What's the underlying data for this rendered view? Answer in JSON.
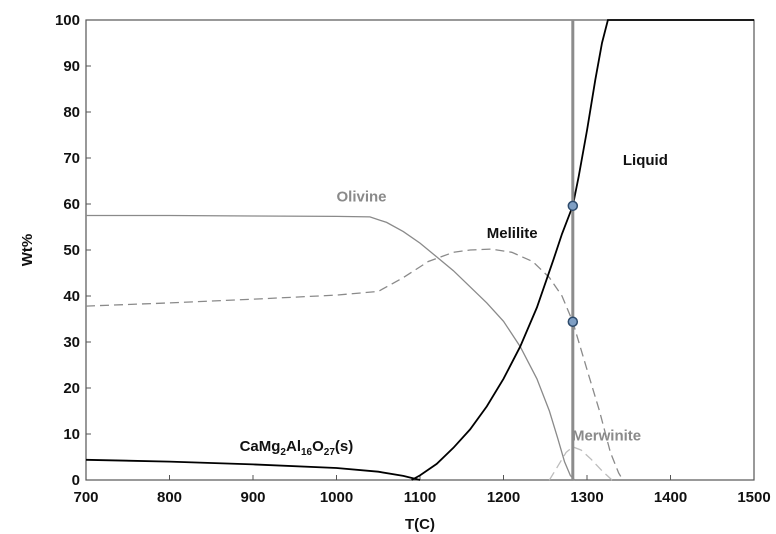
{
  "chart_data": {
    "type": "line",
    "xlabel": "T(C)",
    "ylabel": "Wt%",
    "xlim": [
      700,
      1500
    ],
    "ylim": [
      0,
      100
    ],
    "xticks": [
      700,
      800,
      900,
      1000,
      1100,
      1200,
      1300,
      1400,
      1500
    ],
    "yticks": [
      0,
      10,
      20,
      30,
      40,
      50,
      60,
      70,
      80,
      90,
      100
    ],
    "grid": false,
    "legend": "none",
    "vline": {
      "x": 1283,
      "color": "#8c8c8c"
    },
    "markers": [
      {
        "x": 1283,
        "y": 59.6
      },
      {
        "x": 1283,
        "y": 34.4
      }
    ],
    "series": [
      {
        "name": "Olivine",
        "color": "#8a8a8a",
        "dash": "solid",
        "x": [
          700,
          800,
          900,
          1000,
          1040,
          1060,
          1080,
          1100,
          1120,
          1140,
          1160,
          1180,
          1200,
          1220,
          1240,
          1255,
          1265,
          1273,
          1280,
          1285
        ],
        "y": [
          57.5,
          57.5,
          57.4,
          57.3,
          57.2,
          56,
          54,
          51.5,
          48.5,
          45.5,
          42,
          38.5,
          34.5,
          29,
          22,
          15,
          9,
          4,
          1,
          0
        ]
      },
      {
        "name": "Melilite",
        "color": "#8a8a8a",
        "dash": "dashed",
        "x": [
          700,
          800,
          900,
          1000,
          1050,
          1080,
          1110,
          1140,
          1160,
          1185,
          1210,
          1235,
          1255,
          1270,
          1283,
          1300,
          1315,
          1328,
          1338,
          1343
        ],
        "y": [
          37.8,
          38.5,
          39.3,
          40.2,
          41,
          44,
          47.5,
          49.5,
          50,
          50.2,
          49.5,
          47.5,
          44,
          40,
          34.4,
          24,
          15,
          6,
          1.5,
          0
        ]
      },
      {
        "name": "Liquid",
        "color": "#000000",
        "dash": "solid",
        "x": [
          1090,
          1100,
          1120,
          1140,
          1160,
          1180,
          1200,
          1220,
          1240,
          1260,
          1270,
          1283,
          1290,
          1300,
          1310,
          1318,
          1325,
          1335,
          1350,
          1400,
          1500
        ],
        "y": [
          0,
          1,
          3.5,
          7,
          11,
          16,
          22,
          29,
          37.5,
          48,
          53.5,
          59.6,
          66,
          76,
          87,
          95,
          100,
          100,
          100,
          100,
          100
        ]
      },
      {
        "name": "CaMg2Al16O27(s)",
        "color": "#000000",
        "dash": "solid",
        "x": [
          700,
          800,
          900,
          1000,
          1050,
          1080,
          1100
        ],
        "y": [
          4.4,
          4,
          3.4,
          2.6,
          1.8,
          0.9,
          0
        ]
      },
      {
        "name": "Merwinite",
        "color": "#bdbdbd",
        "dash": "dashed",
        "x": [
          1255,
          1265,
          1275,
          1283,
          1293,
          1305,
          1318,
          1330
        ],
        "y": [
          0,
          3,
          6,
          7.2,
          6.5,
          4.5,
          2,
          0
        ]
      }
    ],
    "labels": [
      {
        "text": "Olivine",
        "x": 1000,
        "y": 60.5,
        "color": "#8a8a8a"
      },
      {
        "text": "Melilite",
        "x": 1180,
        "y": 52.6,
        "color": "#111111"
      },
      {
        "text": "Liquid",
        "x": 1343,
        "y": 68.5,
        "color": "#111111"
      },
      {
        "text": "Merwinite",
        "x": 1282,
        "y": 8.6,
        "color": "#8a8a8a"
      }
    ],
    "compound_label": {
      "base": "CaMg",
      "sub1": "2",
      "mid1": "Al",
      "sub2": "16",
      "mid2": "O",
      "sub3": "27",
      "tail": "(s)",
      "x": 952,
      "y": 6.3,
      "color": "#111111"
    }
  }
}
